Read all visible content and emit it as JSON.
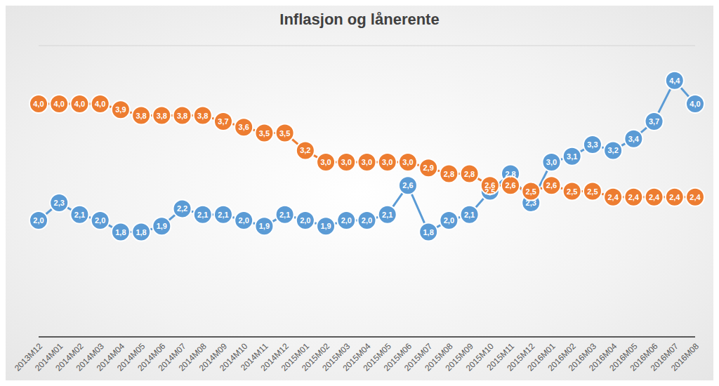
{
  "chart_data": {
    "type": "line",
    "title": "Inflasjon og lånerente",
    "categories": [
      "2013M12",
      "2014M01",
      "2014M02",
      "2014M03",
      "2014M04",
      "2014M05",
      "2014M06",
      "2014M07",
      "2014M08",
      "2014M09",
      "2014M10",
      "2014M11",
      "2014M12",
      "2015M01",
      "2015M02",
      "2015M03",
      "2015M04",
      "2015M05",
      "2015M06",
      "2015M07",
      "2015M08",
      "2015M09",
      "2015M10",
      "2015M11",
      "2015M12",
      "2016M01",
      "2016M02",
      "2016M03",
      "2016M04",
      "2016M05",
      "2016M06",
      "2016M07",
      "2016M08"
    ],
    "series": [
      {
        "color": "#5b9bd5",
        "marker": "circle",
        "values": [
          2.0,
          2.3,
          2.1,
          2.0,
          1.8,
          1.8,
          1.9,
          2.2,
          2.1,
          2.1,
          2.0,
          1.9,
          2.1,
          2.0,
          1.9,
          2.0,
          2.0,
          2.1,
          2.6,
          1.8,
          2.0,
          2.1,
          2.5,
          2.8,
          2.3,
          3.0,
          3.1,
          3.3,
          3.2,
          3.4,
          3.7,
          4.4,
          4.0
        ],
        "value_labels": [
          "2,0",
          "2,3",
          "2,1",
          "2,0",
          "1,8",
          "1,8",
          "1,9",
          "2,2",
          "2,1",
          "2,1",
          "2,0",
          "1,9",
          "2,1",
          "2,0",
          "1,9",
          "2,0",
          "2,0",
          "2,1",
          "2,6",
          "1,8",
          "2,0",
          "2,1",
          "2,5",
          "2,8",
          "2,3",
          "3,0",
          "3,1",
          "3,3",
          "3,2",
          "3,4",
          "3,7",
          "4,4",
          "4,0"
        ]
      },
      {
        "color": "#ed7d31",
        "marker": "circle",
        "values": [
          4.0,
          4.0,
          4.0,
          4.0,
          3.9,
          3.8,
          3.8,
          3.8,
          3.8,
          3.7,
          3.6,
          3.5,
          3.5,
          3.2,
          3.0,
          3.0,
          3.0,
          3.0,
          3.0,
          2.9,
          2.8,
          2.8,
          2.6,
          2.6,
          2.5,
          2.6,
          2.5,
          2.5,
          2.4,
          2.4,
          2.4,
          2.4,
          2.4
        ],
        "value_labels": [
          "4,0",
          "4,0",
          "4,0",
          "4,0",
          "3,9",
          "3,8",
          "3,8",
          "3,8",
          "3,8",
          "3,7",
          "3,6",
          "3,5",
          "3,5",
          "3,2",
          "3,0",
          "3,0",
          "3,0",
          "3,0",
          "3,0",
          "2,9",
          "2,8",
          "2,8",
          "2,6",
          "2,6",
          "2,5",
          "2,6",
          "2,5",
          "2,5",
          "2,4",
          "2,4",
          "2,4",
          "2,4",
          "2,4"
        ]
      }
    ],
    "ylim": [
      0,
      5
    ],
    "yticks": [
      0,
      0.5,
      1,
      1.5,
      2,
      2.5,
      3,
      3.5,
      4,
      4.5,
      5
    ],
    "grid": true,
    "data_labels": true,
    "tick_labels": "x"
  }
}
